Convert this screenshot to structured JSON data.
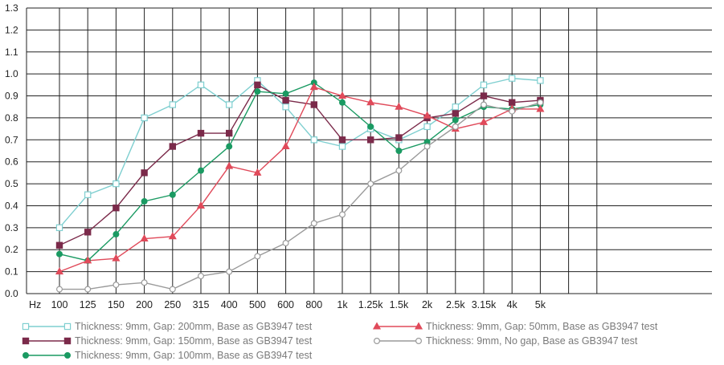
{
  "chart_data": {
    "type": "line",
    "xlabel": "Hz",
    "ylabel": "",
    "title": "",
    "categories": [
      "100",
      "125",
      "150",
      "200",
      "250",
      "315",
      "400",
      "500",
      "600",
      "800",
      "1k",
      "1.25k",
      "1.5k",
      "2k",
      "2.5k",
      "3.15k",
      "4k",
      "5k"
    ],
    "yticks": [
      "0.0",
      "0.1",
      "0.2",
      "0.3",
      "0.4",
      "0.5",
      "0.6",
      "0.7",
      "0.8",
      "0.9",
      "1.0",
      "1.1",
      "1.2",
      "1.3"
    ],
    "ylim": [
      0,
      1.3
    ],
    "grid": true,
    "legend_position": "bottom",
    "series": [
      {
        "name": "Thickness: 9mm, Gap: 200mm, Base as GB3947 test",
        "color": "#7fcfd0",
        "marker": "square-open",
        "values": [
          0.3,
          0.45,
          0.5,
          0.8,
          0.86,
          0.95,
          0.86,
          0.97,
          0.85,
          0.7,
          0.67,
          0.75,
          0.7,
          0.76,
          0.85,
          0.95,
          0.98,
          0.97
        ]
      },
      {
        "name": "Thickness: 9mm, Gap: 150mm, Base as GB3947 test",
        "color": "#7b2a4a",
        "marker": "square",
        "values": [
          0.22,
          0.28,
          0.39,
          0.55,
          0.67,
          0.73,
          0.73,
          0.95,
          0.88,
          0.86,
          0.7,
          0.7,
          0.71,
          0.8,
          0.82,
          0.9,
          0.87,
          0.88
        ]
      },
      {
        "name": "Thickness: 9mm, Gap: 100mm, Base as GB3947 test",
        "color": "#1a9a62",
        "marker": "circle",
        "values": [
          0.18,
          0.15,
          0.27,
          0.42,
          0.45,
          0.56,
          0.67,
          0.92,
          0.91,
          0.96,
          0.87,
          0.76,
          0.65,
          0.69,
          0.79,
          0.85,
          0.84,
          0.86
        ]
      },
      {
        "name": "Thickness: 9mm, Gap: 50mm, Base as GB3947 test",
        "color": "#e04a5a",
        "marker": "triangle",
        "values": [
          0.1,
          0.15,
          0.16,
          0.25,
          0.26,
          0.4,
          0.58,
          0.55,
          0.67,
          0.94,
          0.9,
          0.87,
          0.85,
          0.81,
          0.75,
          0.78,
          0.84,
          0.84
        ]
      },
      {
        "name": "Thickness: 9mm, No gap, Base as GB3947 test",
        "color": "#9a9a9a",
        "marker": "circle-open",
        "values": [
          0.02,
          0.02,
          0.04,
          0.05,
          0.02,
          0.08,
          0.1,
          0.17,
          0.23,
          0.32,
          0.36,
          0.5,
          0.56,
          0.67,
          0.76,
          0.86,
          0.83,
          0.87
        ]
      }
    ]
  }
}
